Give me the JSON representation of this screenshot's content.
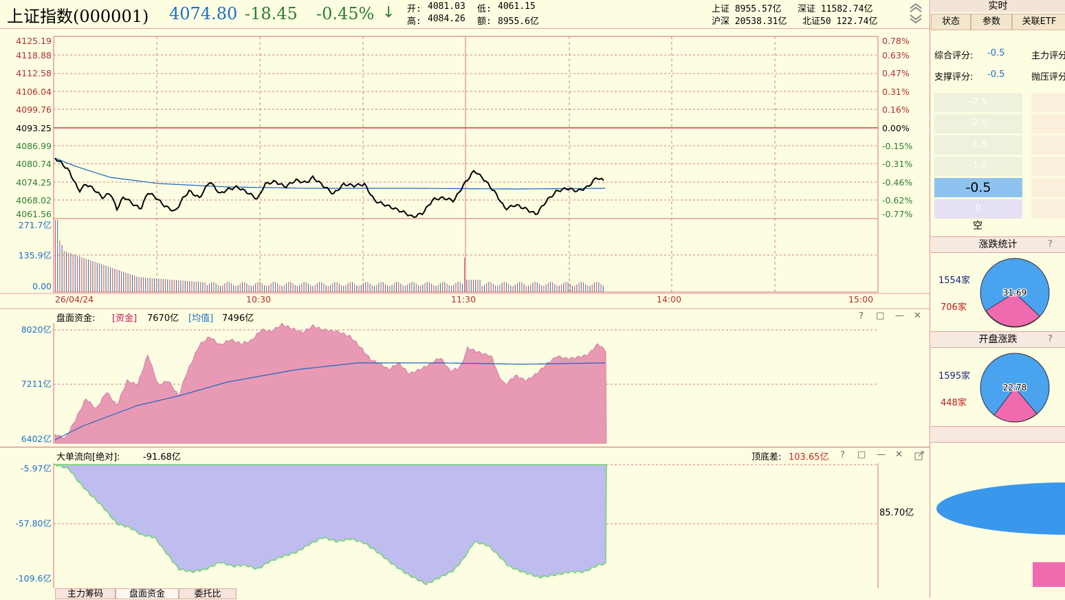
{
  "header": {
    "title": "上证指数(000001)",
    "price": "4074.80",
    "change": "-18.45",
    "change_pct": "-0.45%",
    "arrow": "↓",
    "open_label": "开:",
    "open": "4081.03",
    "low_label": "低:",
    "low": "4061.15",
    "high_label": "高:",
    "high": "4084.26",
    "amount_label": "额:",
    "amount": "8955.6亿",
    "sh": "上证 8955.57亿",
    "sz": "深证 11582.74亿",
    "hs": "沪深 20538.31亿",
    "bz": "北证50 122.74亿"
  },
  "colors": {
    "up": "#e8a0a0",
    "down": "#2e7d32",
    "line": "#1565c0",
    "fill_pink": "#e899b4",
    "fill_violet": "#bfbcef",
    "grid": "#d07070"
  },
  "price_chart": {
    "y_left": [
      "4125.19",
      "4118.88",
      "4112.58",
      "4106.04",
      "4099.76",
      "4093.25",
      "4086.99",
      "4080.74",
      "4074.25",
      "4068.02",
      "4061.56"
    ],
    "y_right": [
      "0.78%",
      "0.63%",
      "0.47%",
      "0.31%",
      "0.16%",
      "0.00%",
      "-0.15%",
      "-0.31%",
      "-0.46%",
      "-0.62%",
      "-0.77%"
    ],
    "vol_labels": [
      "271.7亿",
      "135.9亿",
      "0.00"
    ],
    "x_labels": [
      "26/04/24",
      "10:30",
      "11:30",
      "14:00",
      "15:00"
    ]
  },
  "capital_panel": {
    "title": "盘面资金:",
    "fund_tag": "[资金]",
    "fund_value": "7670亿",
    "avg_tag": "[均值]",
    "avg_value": "7496亿",
    "y_labels": [
      "8020亿",
      "7211亿",
      "6402亿"
    ]
  },
  "bigorder_panel": {
    "title": "大单流向[绝对]:",
    "value": "-91.68亿",
    "diff_label": "顶底差:",
    "diff_value": "103.65亿",
    "y_labels": [
      "-5.97亿",
      "-57.80亿",
      "-109.6亿"
    ],
    "right_label": "85.70亿"
  },
  "panel_icons": {
    "help": "?",
    "restore": "□",
    "min": "—",
    "close": "✕"
  },
  "bottom_tabs": [
    "主力筹码",
    "盘面资金",
    "委托比"
  ],
  "right_panel": {
    "top_label": "实时",
    "tabs": [
      "状态",
      "参数",
      "关联ETF"
    ],
    "score1_label": "综合评分:",
    "score1": "-0.5",
    "score1b_label": "主力评分",
    "score2_label": "支撑评分:",
    "score2": "-0.5",
    "score2b_label": "抛压评分",
    "scale": [
      "-2.5",
      "-2.0",
      "-1.5",
      "-1.0",
      "-0.5",
      "0"
    ],
    "empty_label": "空",
    "rise_fall_title": "涨跌统计",
    "rise_count": "1554家",
    "fall_count": "706家",
    "rise_fall_ratio": "31:69",
    "open_title": "开盘涨跌",
    "open_rise": "1595家",
    "open_fall": "448家",
    "open_ratio": "22:78",
    "help": "?"
  }
}
